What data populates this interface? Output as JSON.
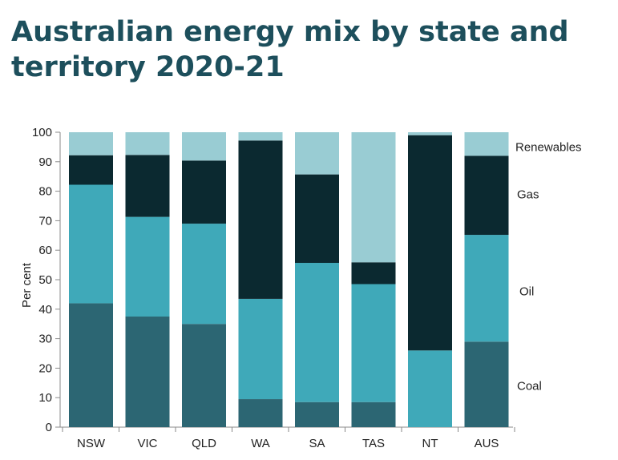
{
  "chart_data": {
    "type": "bar",
    "stacked": true,
    "title": "Australian energy mix by state and territory 2020-21",
    "ylabel": "Per cent",
    "xlabel": "",
    "ylim": [
      0,
      100
    ],
    "yticks": [
      0,
      10,
      20,
      30,
      40,
      50,
      60,
      70,
      80,
      90,
      100
    ],
    "grid": false,
    "legend": "right, inline labels",
    "categories": [
      "NSW",
      "VIC",
      "QLD",
      "WA",
      "SA",
      "TAS",
      "NT",
      "AUS"
    ],
    "series": [
      {
        "name": "Coal",
        "color": "#2c6673",
        "values": [
          42,
          37.5,
          35,
          9.5,
          8.5,
          8.5,
          0,
          29
        ]
      },
      {
        "name": "Oil",
        "color": "#3fa9b9",
        "values": [
          40.2,
          33.8,
          34,
          34,
          47.2,
          40,
          26,
          36.2
        ]
      },
      {
        "name": "Gas",
        "color": "#0b2930",
        "values": [
          10,
          21,
          21.4,
          53.7,
          30,
          7.4,
          73,
          26.8
        ]
      },
      {
        "name": "Renewables",
        "color": "#99ccd3",
        "values": [
          7.8,
          7.7,
          9.6,
          2.8,
          14.3,
          44.1,
          1,
          8
        ]
      }
    ]
  }
}
